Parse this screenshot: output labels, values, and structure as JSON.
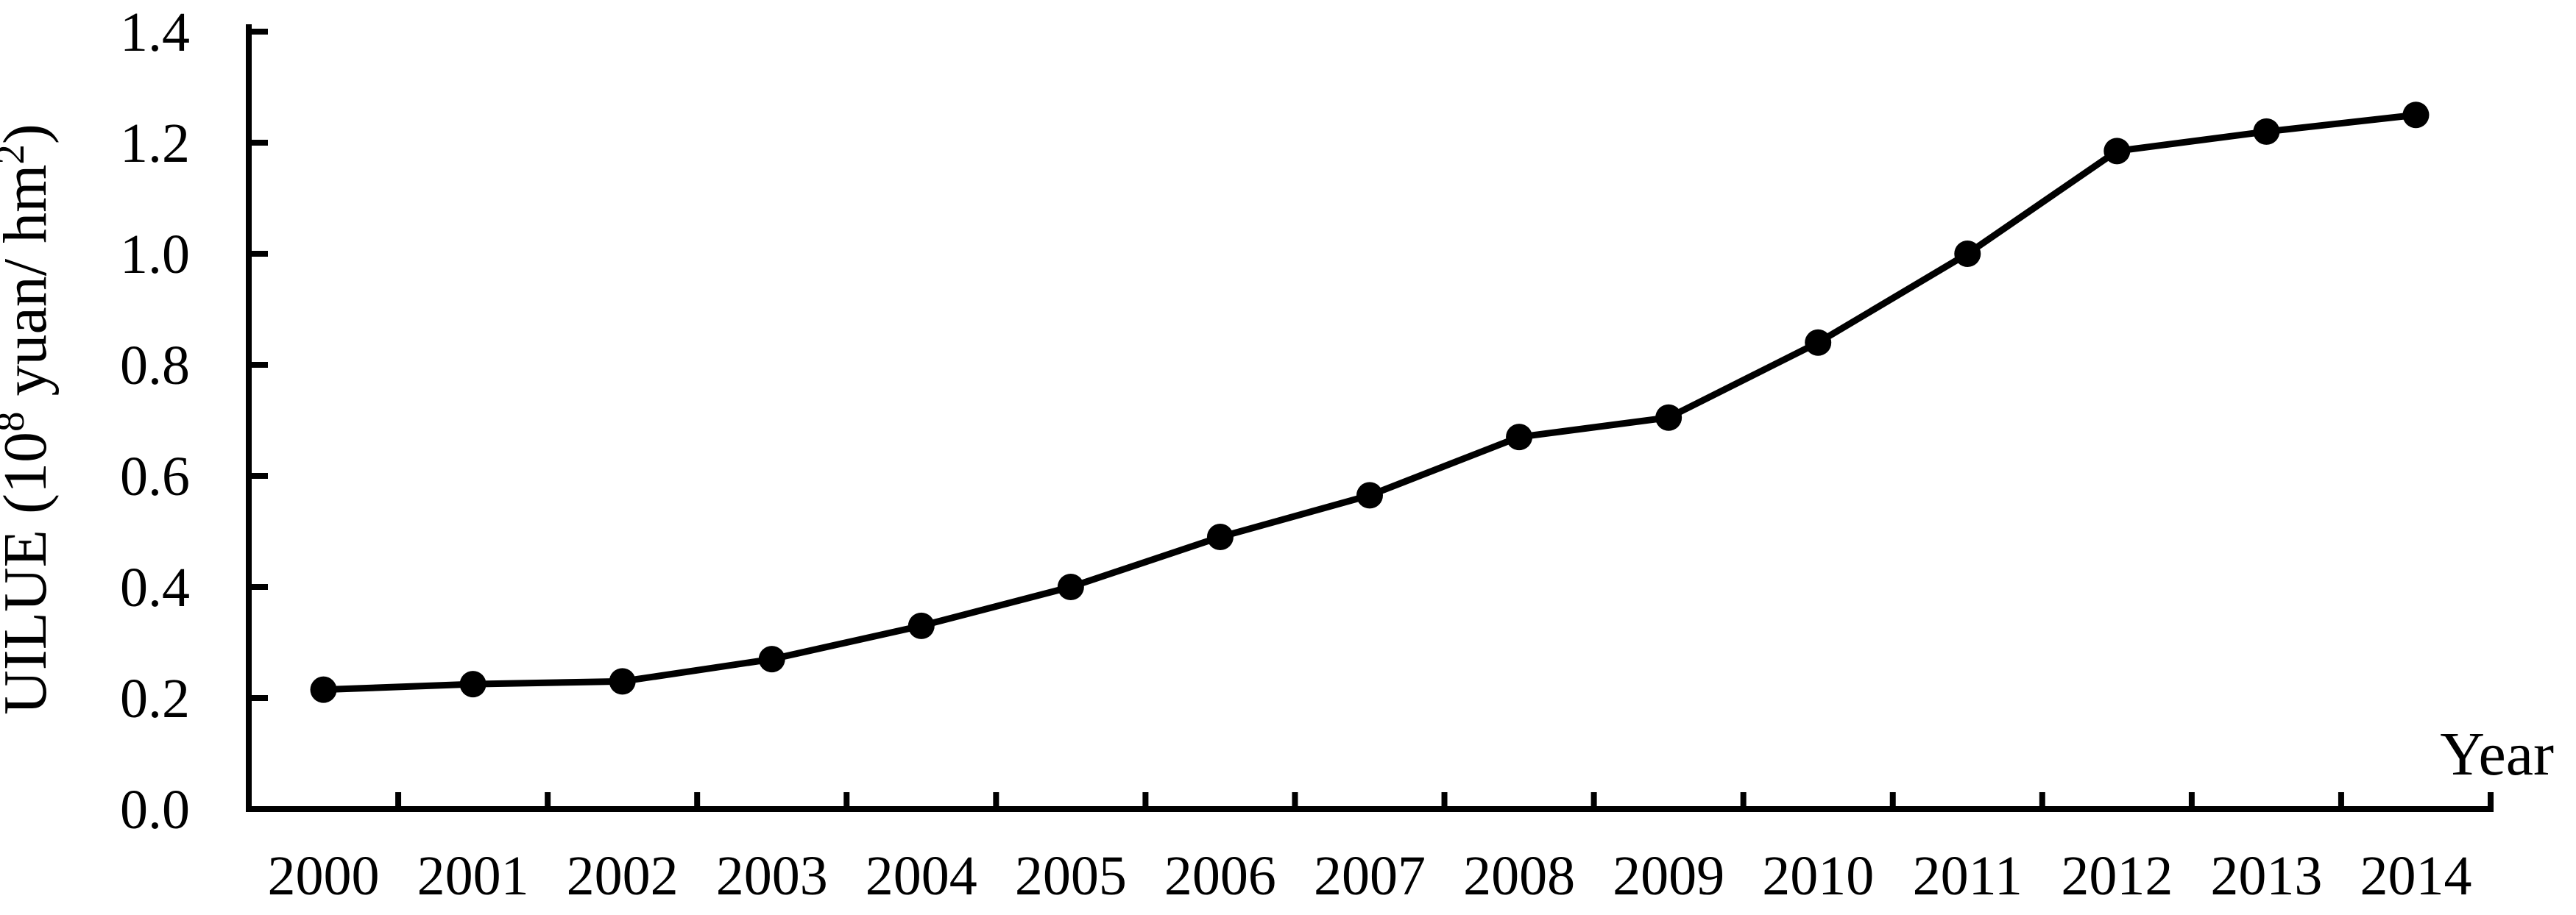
{
  "chart_data": {
    "type": "line",
    "title": "",
    "xlabel": "Year",
    "ylabel": "UILUE (10^8 yuan/ hm^2)",
    "ylabel_parts": [
      {
        "text": "UILUE (10",
        "superscript": false
      },
      {
        "text": "8",
        "superscript": true
      },
      {
        "text": " yuan/ hm",
        "superscript": false
      },
      {
        "text": "2",
        "superscript": true
      },
      {
        "text": ")",
        "superscript": false
      }
    ],
    "categories": [
      "2000",
      "2001",
      "2002",
      "2003",
      "2004",
      "2005",
      "2006",
      "2007",
      "2008",
      "2009",
      "2010",
      "2011",
      "2012",
      "2013",
      "2014"
    ],
    "series": [
      {
        "name": "UILUE",
        "values": [
          0.215,
          0.225,
          0.23,
          0.27,
          0.33,
          0.4,
          0.49,
          0.565,
          0.67,
          0.705,
          0.84,
          1.0,
          1.185,
          1.22,
          1.25
        ]
      }
    ],
    "ylim": [
      0.0,
      1.4
    ],
    "ytick_step": 0.2,
    "ytick_labels": [
      "0.0",
      "0.2",
      "0.4",
      "0.6",
      "0.8",
      "1.0",
      "1.2",
      "1.4"
    ],
    "grid": false,
    "legend": "none",
    "marker": "filled-circle",
    "line_color": "#000000",
    "marker_color": "#000000",
    "axis_color": "#000000",
    "background_color": "#ffffff",
    "tick_direction": "inside"
  }
}
